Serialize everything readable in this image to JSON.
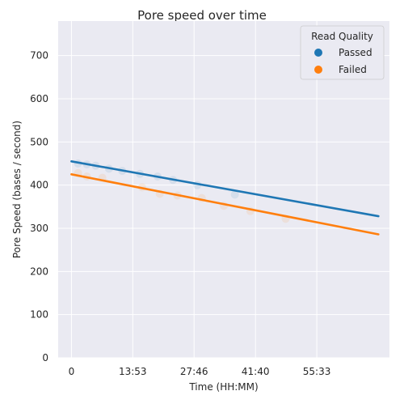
{
  "chart_data": {
    "type": "scatter",
    "title": "Pore speed over time",
    "xlabel": "Time (HH:MM)",
    "ylabel": "Pore Speed (bases / second)",
    "xlim": [
      -3,
      72
    ],
    "ylim": [
      0,
      780
    ],
    "x_ticks": [
      0,
      13.88,
      27.77,
      41.67,
      55.55
    ],
    "x_tick_labels": [
      "0",
      "13:53",
      "27:46",
      "41:40",
      "55:33"
    ],
    "y_ticks": [
      0,
      100,
      200,
      300,
      400,
      500,
      600,
      700
    ],
    "grid": true,
    "legend": {
      "title": "Read Quality",
      "position": "top-right"
    },
    "series": [
      {
        "name": "Passed",
        "color": "#1f77b4",
        "points": [
          [
            1.5,
            450
          ],
          [
            3.5,
            448
          ],
          [
            5.5,
            445
          ],
          [
            8.5,
            438
          ],
          [
            11.5,
            433
          ],
          [
            15.5,
            426
          ],
          [
            19.5,
            420
          ],
          [
            23.0,
            412
          ],
          [
            28.5,
            400
          ],
          [
            37.0,
            378
          ]
        ],
        "trend": [
          [
            0,
            455
          ],
          [
            69.5,
            328
          ]
        ]
      },
      {
        "name": "Failed",
        "color": "#ff7f0e",
        "points": [
          [
            1.5,
            428
          ],
          [
            3.5,
            420
          ],
          [
            7.0,
            417
          ],
          [
            16.0,
            395
          ],
          [
            20.0,
            380
          ],
          [
            24.0,
            376
          ],
          [
            29.5,
            370
          ],
          [
            34.5,
            352
          ],
          [
            40.5,
            340
          ],
          [
            48.5,
            322
          ]
        ],
        "trend": [
          [
            0,
            425
          ],
          [
            69.5,
            286
          ]
        ]
      }
    ]
  }
}
